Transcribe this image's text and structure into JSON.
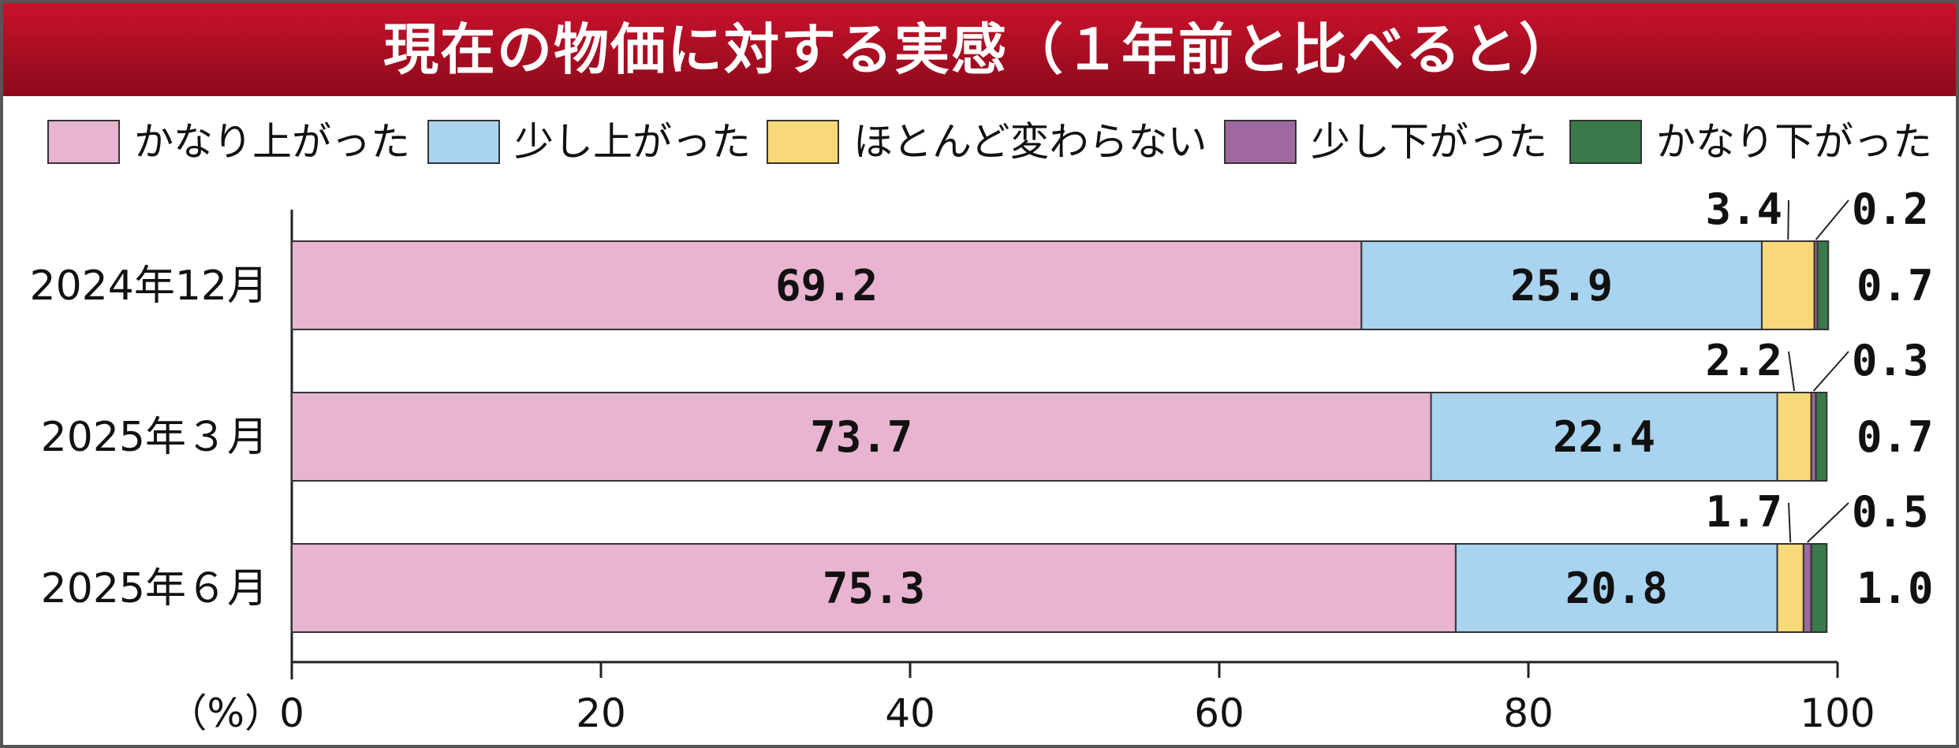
{
  "chart_data": {
    "type": "bar",
    "stacked": true,
    "orientation": "horizontal",
    "title": "現在の物価に対する実感（１年前と比べると）",
    "categories": [
      "2024年12月",
      "2025年３月",
      "2025年６月"
    ],
    "series": [
      {
        "name": "かなり上がった",
        "color": "#e8b4d0",
        "values": [
          69.2,
          73.7,
          75.3
        ],
        "labels": [
          "69.2",
          "73.7",
          "75.3"
        ]
      },
      {
        "name": "少し上がった",
        "color": "#a8d4f0",
        "values": [
          25.9,
          22.4,
          20.8
        ],
        "labels": [
          "25.9",
          "22.4",
          "20.8"
        ]
      },
      {
        "name": "ほとんど変わらない",
        "color": "#f8d878",
        "values": [
          3.4,
          2.2,
          1.7
        ],
        "labels": [
          "3.4",
          "2.2",
          "1.7"
        ]
      },
      {
        "name": "少し下がった",
        "color": "#a068a0",
        "values": [
          0.2,
          0.3,
          0.5
        ],
        "labels": [
          "0.2",
          "0.3",
          "0.5"
        ]
      },
      {
        "name": "かなり下がった",
        "color": "#3a7a4a",
        "values": [
          0.7,
          0.7,
          1.0
        ],
        "labels": [
          "0.7",
          "0.7",
          "1.0"
        ]
      }
    ],
    "xlim": [
      0,
      100
    ],
    "xticks": [
      "0",
      "20",
      "40",
      "60",
      "80",
      "100"
    ],
    "unit_label": "（%）",
    "legend_position": "top"
  }
}
